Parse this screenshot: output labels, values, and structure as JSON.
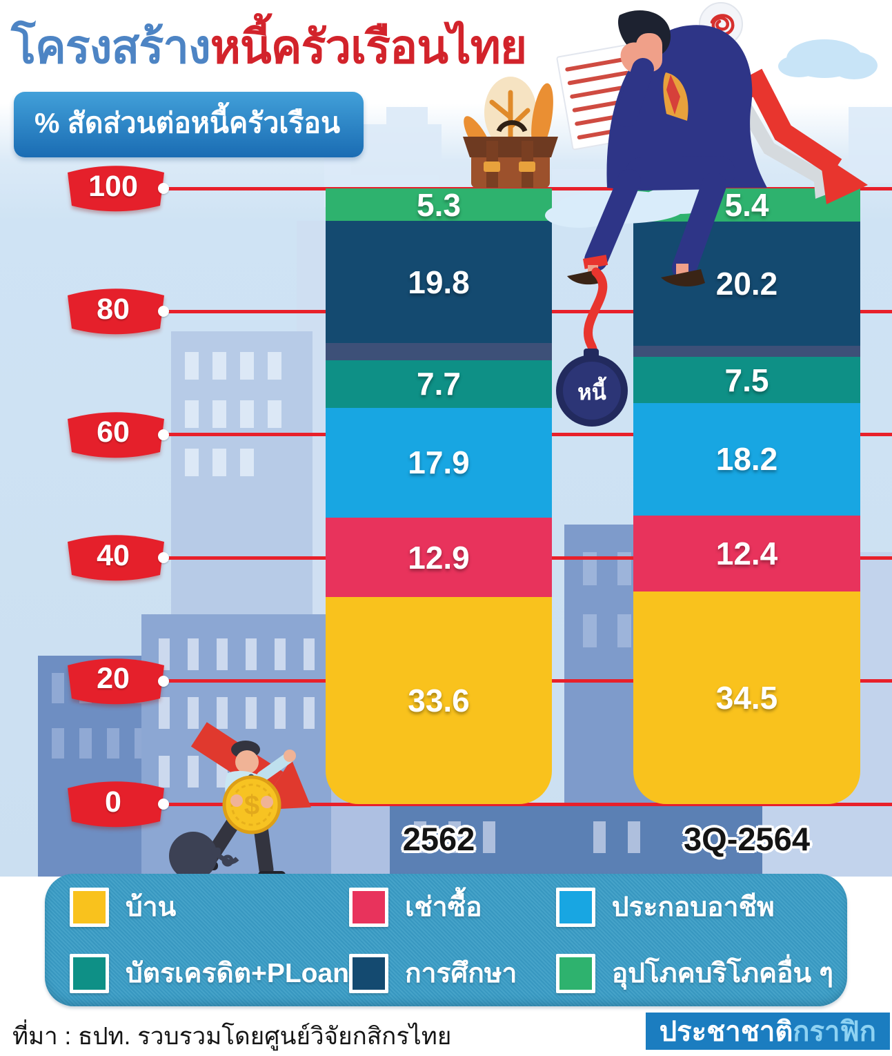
{
  "header": {
    "title_blue": "โครงสร้าง",
    "title_red": "หนี้ครัวเรือนไทย",
    "unit_label": "% สัดส่วนต่อหนี้ครัวเรือน"
  },
  "chart_data": {
    "type": "bar",
    "subtype": "stacked-percentage-columns",
    "title": "โครงสร้างหนี้ครัวเรือนไทย",
    "ylabel": "% สัดส่วนต่อหนี้ครัวเรือน",
    "y_axis": {
      "min": 0,
      "max": 100,
      "ticks": [
        100,
        80,
        60,
        40,
        20,
        0
      ],
      "gridlines": true,
      "grid_color": "#e8202a"
    },
    "categories": [
      "2562",
      "3Q-2564"
    ],
    "series": [
      {
        "label": "อุปโภคบริโภคอื่น ๆ",
        "color": "#2eb26e",
        "values": [
          5.3,
          5.4
        ],
        "value_label_shown": true
      },
      {
        "label": "การศึกษา",
        "color": "#144a70",
        "values": [
          19.8,
          20.2
        ],
        "value_label_shown": true
      },
      {
        "label": "",
        "color": "#3d5078",
        "values": [
          2.8,
          1.8
        ],
        "value_label_shown": false,
        "note": "unlabeled thin band between segments"
      },
      {
        "label": "บัตรเครดิต+PLoan",
        "color": "#0e9086",
        "values": [
          7.7,
          7.5
        ],
        "value_label_shown": true
      },
      {
        "label": "ประกอบอาชีพ",
        "color": "#18a6e2",
        "values": [
          17.9,
          18.2
        ],
        "value_label_shown": true
      },
      {
        "label": "เช่าซื้อ",
        "color": "#e8335c",
        "values": [
          12.9,
          12.4
        ],
        "value_label_shown": true
      },
      {
        "label": "บ้าน",
        "color": "#f9c21d",
        "values": [
          33.6,
          34.5
        ],
        "value_label_shown": true
      }
    ],
    "legend_position": "bottom",
    "legend": [
      {
        "label": "บ้าน",
        "color": "#f9c21d"
      },
      {
        "label": "เช่าซื้อ",
        "color": "#e8335c"
      },
      {
        "label": "ประกอบอาชีพ",
        "color": "#18a6e2"
      },
      {
        "label": "บัตรเครดิต+PLoan",
        "color": "#0e9086"
      },
      {
        "label": "การศึกษา",
        "color": "#144a70"
      },
      {
        "label": "อุปโภคบริโภคอื่น ๆ",
        "color": "#2eb26e"
      }
    ]
  },
  "illustrations": {
    "debt_ball_label": "หนี้"
  },
  "footer": {
    "source": "ที่มา : ธปท. รวบรวมโดยศูนย์วิจัยกสิกรไทย",
    "brand_primary": "ประชาชาติ",
    "brand_secondary": "กราฟิก"
  },
  "colors": {
    "accent_red": "#e8202a",
    "title_blue": "#4d84c4",
    "title_red": "#d2232b",
    "badge_blue": "#1b7dc0",
    "legend_panel": "#3a9dc6"
  }
}
